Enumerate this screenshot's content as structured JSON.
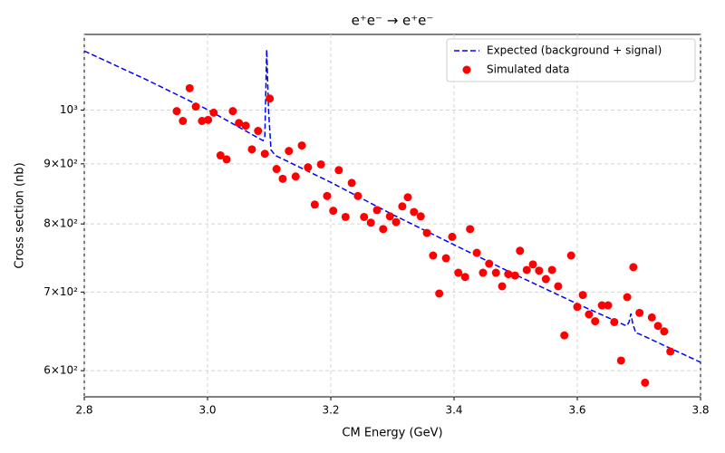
{
  "chart_data": {
    "type": "scatter",
    "title": "e⁺e⁻ → e⁺e⁻",
    "x_label": "CM Energy (GeV)",
    "y_label": "Cross section (nb)",
    "log_y": true,
    "grid": true,
    "legend": "upper right",
    "xlim": [
      2.8,
      3.8
    ],
    "xticks": [
      2.8,
      {
        "value": 3,
        "label": "3.0"
      },
      3.2,
      3.4,
      3.6,
      3.8
    ],
    "ylim": [
      570,
      1160
    ],
    "yticks": [
      {
        "value": 600,
        "label": "6×10²"
      },
      {
        "value": 700,
        "label": "7×10²"
      },
      {
        "value": 800,
        "label": "8×10²"
      },
      {
        "value": 900,
        "label": "9×10²"
      },
      {
        "value": 1000,
        "label": "10³"
      }
    ],
    "series": [
      {
        "name": "Expected (background + signal)",
        "mark": "dashed-line",
        "color": "#0000ff",
        "x": [
          2.8,
          2.9,
          3.0,
          3.09,
          3.093,
          3.096,
          3.099,
          3.103,
          3.11,
          3.2,
          3.3,
          3.4,
          3.5,
          3.6,
          3.68,
          3.684,
          3.687,
          3.69,
          3.695,
          3.7,
          3.8
        ],
        "values": [
          1123,
          1062,
          1001,
          942,
          950,
          1126,
          1000,
          925,
          915,
          868,
          815,
          768,
          724,
          684,
          655,
          660,
          671,
          658,
          646,
          645,
          610
        ]
      },
      {
        "name": "Simulated data",
        "mark": "marker",
        "color": "#ff0000",
        "x": [
          2.95,
          2.96,
          2.971,
          2.981,
          2.991,
          3.001,
          3.01,
          3.021,
          3.031,
          3.041,
          3.051,
          3.062,
          3.072,
          3.082,
          3.093,
          3.101,
          3.112,
          3.122,
          3.132,
          3.143,
          3.153,
          3.163,
          3.174,
          3.184,
          3.194,
          3.204,
          3.213,
          3.224,
          3.234,
          3.244,
          3.254,
          3.265,
          3.275,
          3.285,
          3.296,
          3.306,
          3.316,
          3.325,
          3.335,
          3.346,
          3.356,
          3.366,
          3.376,
          3.387,
          3.397,
          3.407,
          3.418,
          3.426,
          3.437,
          3.447,
          3.457,
          3.468,
          3.478,
          3.488,
          3.499,
          3.507,
          3.518,
          3.528,
          3.538,
          3.549,
          3.559,
          3.569,
          3.579,
          3.59,
          3.6,
          3.609,
          3.619,
          3.629,
          3.64,
          3.65,
          3.66,
          3.671,
          3.681,
          3.691,
          3.701,
          3.71,
          3.721,
          3.731,
          3.741,
          3.751
        ],
        "values": [
          998,
          979,
          1044,
          1007,
          979,
          981,
          995,
          915,
          908,
          998,
          975,
          970,
          926,
          960,
          918,
          1023,
          891,
          874,
          923,
          878,
          933,
          894,
          831,
          899,
          845,
          821,
          889,
          811,
          867,
          845,
          811,
          802,
          822,
          792,
          812,
          803,
          828,
          843,
          819,
          812,
          786,
          752,
          698,
          748,
          780,
          727,
          721,
          792,
          756,
          727,
          740,
          727,
          708,
          725,
          723,
          759,
          731,
          739,
          730,
          718,
          731,
          708,
          643,
          752,
          680,
          696,
          670,
          661,
          682,
          682,
          660,
          612,
          693,
          735,
          672,
          586,
          666,
          655,
          648,
          623
        ]
      }
    ]
  }
}
